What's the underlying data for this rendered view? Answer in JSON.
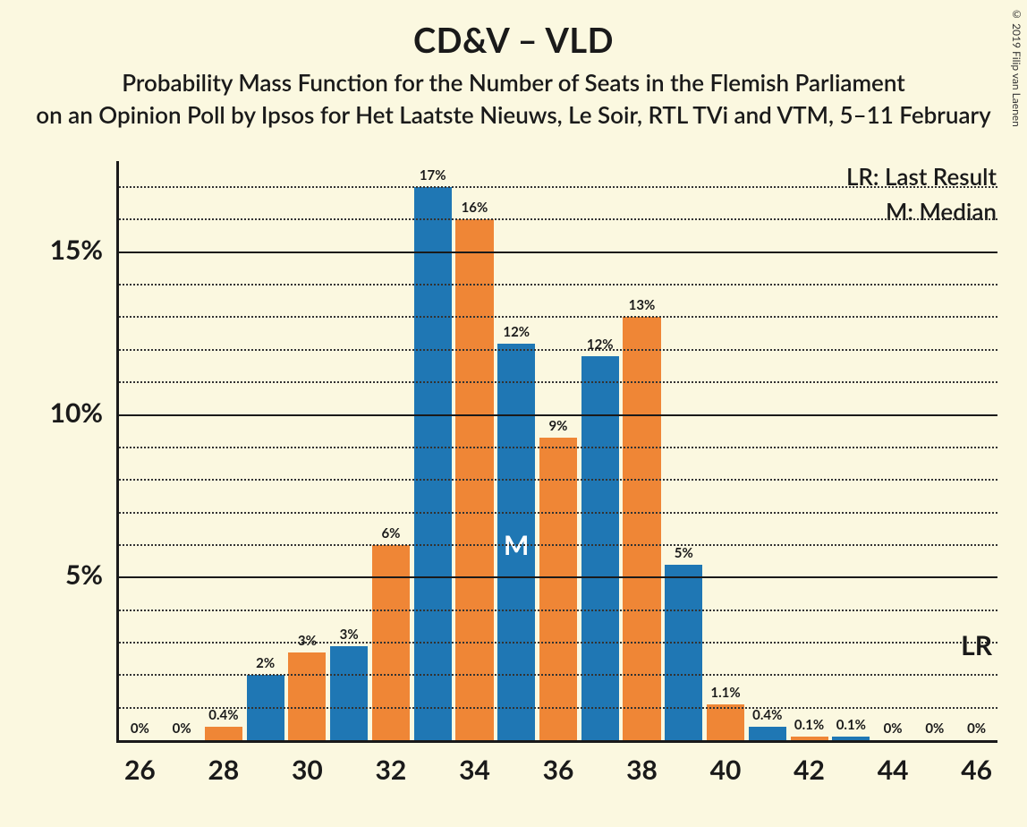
{
  "copyright": "© 2019 Filip van Laenen",
  "titles": {
    "main": "CD&V – VLD",
    "sub1": "Probability Mass Function for the Number of Seats in the Flemish Parliament",
    "sub2": "on an Opinion Poll by Ipsos for Het Laatste Nieuws, Le Soir, RTL TVi and VTM, 5–11 February"
  },
  "legend": {
    "lr": "LR: Last Result",
    "m": "M: Median"
  },
  "chart": {
    "type": "bar",
    "background_color": "#fbf8e0",
    "axis_color": "#1a1a1a",
    "grid_major_color": "#1a1a1a",
    "grid_minor_color": "#333333",
    "bar_colors": {
      "blue": "#1f77b4",
      "orange": "#ef8636"
    },
    "x_min": 25.5,
    "x_max": 46.5,
    "x_ticks": [
      26,
      28,
      30,
      32,
      34,
      36,
      38,
      40,
      42,
      44,
      46
    ],
    "y_max_pct": 17.8,
    "y_major_ticks": [
      5,
      10,
      15
    ],
    "y_minor_step": 1,
    "bar_width_x_units": 0.9,
    "label_fontsize": 15,
    "tick_fontsize": 30,
    "median_marker": {
      "x": 35,
      "label": "M"
    },
    "lr_marker": {
      "x": 46,
      "label": "LR"
    },
    "bars": [
      {
        "x": 26,
        "color": "blue",
        "value": 0,
        "label": "0%"
      },
      {
        "x": 27,
        "color": "orange",
        "value": 0,
        "label": "0%"
      },
      {
        "x": 28,
        "color": "orange",
        "value": 0.4,
        "label": "0.4%"
      },
      {
        "x": 29,
        "color": "blue",
        "value": 2,
        "label": "2%"
      },
      {
        "x": 30,
        "color": "orange",
        "value": 2.7,
        "label": "3%"
      },
      {
        "x": 31,
        "color": "blue",
        "value": 2.9,
        "label": "3%"
      },
      {
        "x": 32,
        "color": "orange",
        "value": 6,
        "label": "6%"
      },
      {
        "x": 33,
        "color": "blue",
        "value": 17,
        "label": "17%"
      },
      {
        "x": 34,
        "color": "orange",
        "value": 16,
        "label": "16%"
      },
      {
        "x": 35,
        "color": "blue",
        "value": 12.2,
        "label": "12%"
      },
      {
        "x": 36,
        "color": "orange",
        "value": 9.3,
        "label": "9%"
      },
      {
        "x": 37,
        "color": "blue",
        "value": 11.8,
        "label": "12%"
      },
      {
        "x": 38,
        "color": "orange",
        "value": 13,
        "label": "13%"
      },
      {
        "x": 39,
        "color": "blue",
        "value": 5.4,
        "label": "5%"
      },
      {
        "x": 40,
        "color": "orange",
        "value": 1.1,
        "label": "1.1%"
      },
      {
        "x": 41,
        "color": "blue",
        "value": 0.4,
        "label": "0.4%"
      },
      {
        "x": 42,
        "color": "orange",
        "value": 0.1,
        "label": "0.1%"
      },
      {
        "x": 43,
        "color": "blue",
        "value": 0.1,
        "label": "0.1%"
      },
      {
        "x": 44,
        "color": "orange",
        "value": 0,
        "label": "0%"
      },
      {
        "x": 45,
        "color": "blue",
        "value": 0,
        "label": "0%"
      },
      {
        "x": 46,
        "color": "orange",
        "value": 0,
        "label": "0%"
      }
    ]
  }
}
